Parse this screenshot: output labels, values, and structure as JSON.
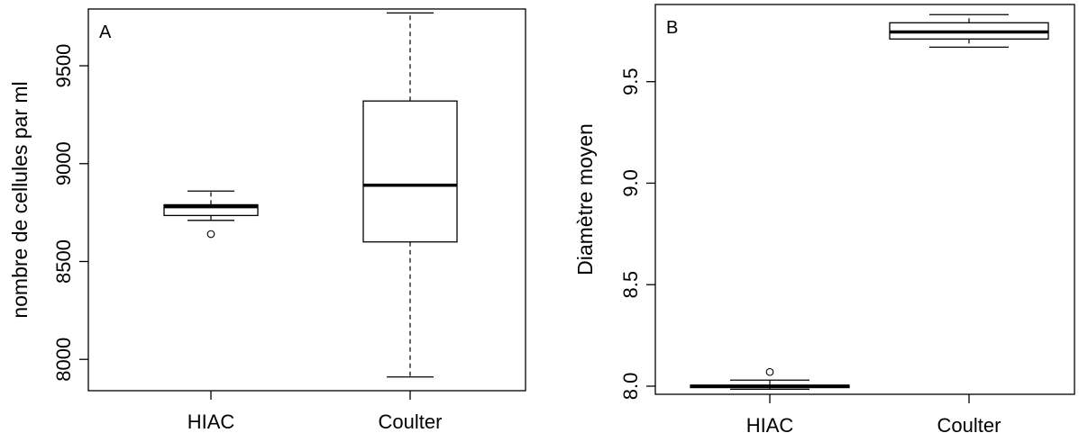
{
  "chart_data": [
    {
      "type": "boxplot",
      "panel_label": "A",
      "ylabel": "nombre de cellules par ml",
      "xlabel": "",
      "categories": [
        "HIAC",
        "Coulter"
      ],
      "yticks": [
        8000,
        8500,
        9000,
        9500
      ],
      "ylim": [
        7840,
        9790
      ],
      "boxes": [
        {
          "category": "HIAC",
          "whisker_low": 8710,
          "q1": 8735,
          "median": 8780,
          "q3": 8790,
          "whisker_high": 8860,
          "outliers": [
            8640
          ]
        },
        {
          "category": "Coulter",
          "whisker_low": 7910,
          "q1": 8600,
          "median": 8890,
          "q3": 9320,
          "whisker_high": 9770,
          "outliers": []
        }
      ]
    },
    {
      "type": "boxplot",
      "panel_label": "B",
      "ylabel": "Diamètre moyen",
      "xlabel": "",
      "categories": [
        "HIAC",
        "Coulter"
      ],
      "yticks": [
        8.0,
        8.5,
        9.0,
        9.5
      ],
      "ytick_labels": [
        "8.0",
        "8.5",
        "9.0",
        "9.5"
      ],
      "ylim": [
        7.96,
        9.88
      ],
      "boxes": [
        {
          "category": "HIAC",
          "whisker_low": 7.985,
          "q1": 7.993,
          "median": 8.0,
          "q3": 8.005,
          "whisker_high": 8.03,
          "outliers": [
            8.07
          ]
        },
        {
          "category": "Coulter",
          "whisker_low": 9.67,
          "q1": 9.71,
          "median": 9.745,
          "q3": 9.79,
          "whisker_high": 9.83,
          "outliers": []
        }
      ]
    }
  ]
}
